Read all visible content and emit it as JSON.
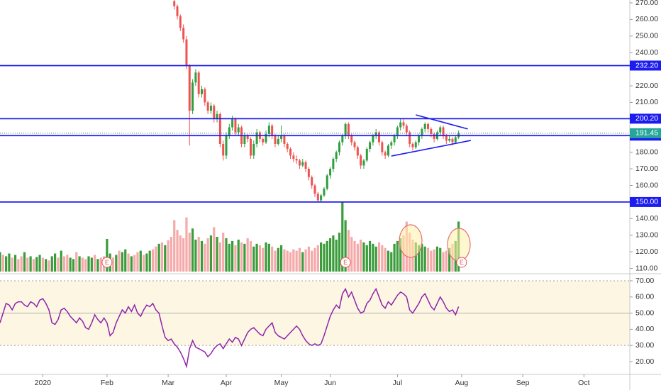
{
  "chart_data": {
    "type": "candlestick",
    "x": [
      -13,
      -12,
      -11,
      -10,
      -9,
      -8,
      -7,
      -6,
      -5,
      -4,
      -3,
      -2,
      -1,
      0,
      1,
      2,
      3,
      4,
      5,
      6,
      7,
      8,
      9,
      10,
      11,
      12,
      13,
      14,
      15,
      16,
      17,
      18,
      19,
      20,
      21,
      22,
      23,
      24,
      25,
      26,
      27,
      28,
      29,
      30,
      31,
      32,
      33,
      34,
      35,
      36,
      37,
      38,
      39,
      40,
      41,
      42,
      43,
      44,
      45,
      46,
      47,
      48,
      49,
      50,
      51,
      52,
      53,
      54,
      55,
      56,
      57,
      58,
      59,
      60,
      61,
      62,
      63,
      64,
      65,
      66,
      67,
      68,
      69,
      70,
      71,
      72,
      73,
      74,
      75,
      76,
      77,
      78,
      79,
      80,
      81,
      82,
      83,
      84,
      85,
      86,
      87,
      88,
      89,
      90,
      91,
      92,
      93,
      94,
      95,
      96,
      97,
      98,
      99,
      100,
      101,
      102,
      103,
      104,
      105,
      106,
      107,
      108,
      109,
      110,
      111,
      112,
      113,
      114,
      115,
      116,
      117,
      118,
      119,
      120,
      121,
      122,
      123,
      124,
      125,
      126,
      127,
      128,
      129,
      130,
      131,
      132,
      133,
      134,
      135,
      136,
      137
    ],
    "ohlc": [
      null,
      null,
      null,
      null,
      null,
      null,
      null,
      null,
      null,
      null,
      null,
      null,
      null,
      null,
      null,
      null,
      null,
      null,
      null,
      null,
      null,
      null,
      null,
      null,
      null,
      null,
      null,
      null,
      null,
      null,
      null,
      null,
      null,
      null,
      null,
      null,
      null,
      null,
      null,
      null,
      null,
      null,
      null,
      null,
      null,
      null,
      null,
      null,
      null,
      null,
      null,
      null,
      null,
      null,
      null,
      null,
      null,
      [
        271,
        272,
        266,
        268
      ],
      [
        268,
        269,
        260,
        262
      ],
      [
        262,
        263,
        253,
        255
      ],
      [
        255,
        257,
        246,
        248
      ],
      [
        248,
        250,
        230,
        232
      ],
      [
        232,
        233,
        184,
        205
      ],
      [
        205,
        224,
        203,
        222
      ],
      [
        222,
        230,
        220,
        228
      ],
      [
        228,
        229,
        213,
        215
      ],
      [
        215,
        220,
        213,
        218
      ],
      [
        218,
        219,
        208,
        210
      ],
      [
        210,
        211,
        203,
        205
      ],
      [
        205,
        210,
        203,
        208
      ],
      [
        208,
        209,
        198,
        200
      ],
      [
        200,
        205,
        198,
        203
      ],
      [
        203,
        204,
        183,
        185
      ],
      [
        185,
        187,
        175,
        178
      ],
      [
        178,
        192,
        176,
        190
      ],
      [
        190,
        197,
        188,
        195
      ],
      [
        195,
        202,
        193,
        200
      ],
      [
        200,
        201,
        190,
        192
      ],
      [
        192,
        197,
        190,
        195
      ],
      [
        195,
        196,
        183,
        185
      ],
      [
        185,
        192,
        183,
        190
      ],
      [
        190,
        191,
        186,
        188
      ],
      [
        188,
        189,
        176,
        178
      ],
      [
        178,
        187,
        176,
        185
      ],
      [
        185,
        194,
        183,
        192
      ],
      [
        192,
        193,
        186,
        188
      ],
      [
        188,
        189,
        184,
        186
      ],
      [
        186,
        193,
        185,
        191
      ],
      [
        191,
        198,
        189,
        196
      ],
      [
        196,
        197,
        188,
        190
      ],
      [
        190,
        191,
        183,
        185
      ],
      [
        185,
        190,
        184,
        188
      ],
      [
        188,
        196,
        186,
        190
      ],
      [
        190,
        191,
        183,
        185
      ],
      [
        185,
        186,
        180,
        182
      ],
      [
        182,
        183,
        176,
        178
      ],
      [
        178,
        180,
        174,
        176
      ],
      [
        176,
        178,
        173,
        175
      ],
      [
        175,
        176,
        170,
        172
      ],
      [
        172,
        176,
        171,
        174
      ],
      [
        174,
        175,
        168,
        170
      ],
      [
        170,
        171,
        163,
        165
      ],
      [
        165,
        166,
        158,
        160
      ],
      [
        160,
        161,
        153,
        155
      ],
      [
        155,
        156,
        150,
        151
      ],
      [
        151,
        155,
        150,
        154
      ],
      [
        154,
        159,
        153,
        158
      ],
      [
        158,
        167,
        157,
        166
      ],
      [
        166,
        171,
        164,
        170
      ],
      [
        170,
        177,
        168,
        176
      ],
      [
        176,
        181,
        174,
        180
      ],
      [
        180,
        187,
        178,
        186
      ],
      [
        186,
        191,
        184,
        190
      ],
      [
        190,
        198,
        188,
        197
      ],
      [
        197,
        198,
        188,
        190
      ],
      [
        190,
        191,
        184,
        186
      ],
      [
        186,
        187,
        181,
        183
      ],
      [
        183,
        184,
        176,
        178
      ],
      [
        178,
        179,
        170,
        172
      ],
      [
        172,
        176,
        170,
        175
      ],
      [
        175,
        183,
        174,
        182
      ],
      [
        182,
        187,
        180,
        186
      ],
      [
        186,
        191,
        184,
        190
      ],
      [
        190,
        194,
        188,
        192
      ],
      [
        192,
        193,
        184,
        186
      ],
      [
        186,
        187,
        178,
        180
      ],
      [
        180,
        181,
        176,
        178
      ],
      [
        178,
        185,
        177,
        184
      ],
      [
        184,
        187,
        182,
        186
      ],
      [
        186,
        191,
        184,
        190
      ],
      [
        190,
        196,
        188,
        195
      ],
      [
        195,
        200,
        193,
        198
      ],
      [
        198,
        200,
        194,
        196
      ],
      [
        196,
        197,
        190,
        192
      ],
      [
        192,
        193,
        183,
        185
      ],
      [
        185,
        186,
        181,
        183
      ],
      [
        183,
        187,
        182,
        186
      ],
      [
        186,
        191,
        184,
        190
      ],
      [
        190,
        195,
        188,
        194
      ],
      [
        194,
        198,
        192,
        197
      ],
      [
        197,
        198,
        192,
        194
      ],
      [
        194,
        195,
        189,
        191
      ],
      [
        191,
        192,
        186,
        188
      ],
      [
        188,
        193,
        187,
        192
      ],
      [
        192,
        196,
        190,
        195
      ],
      [
        195,
        196,
        188,
        190
      ],
      [
        190,
        191,
        185,
        187
      ],
      [
        187,
        190,
        186,
        188
      ],
      [
        188,
        189,
        184,
        186
      ],
      [
        186,
        190,
        185,
        189
      ],
      [
        189,
        193,
        188,
        191.45
      ]
    ],
    "volume": [
      28,
      24,
      22,
      26,
      20,
      24,
      18,
      22,
      28,
      20,
      22,
      18,
      21,
      24,
      20,
      18,
      16,
      22,
      26,
      20,
      30,
      22,
      24,
      20,
      18,
      28,
      22,
      20,
      18,
      22,
      20,
      24,
      18,
      20,
      22,
      47,
      26,
      20,
      24,
      30,
      28,
      32,
      26,
      22,
      24,
      28,
      30,
      24,
      26,
      30,
      32,
      36,
      40,
      42,
      38,
      45,
      50,
      74,
      60,
      52,
      48,
      78,
      56,
      62,
      46,
      50,
      44,
      40,
      48,
      52,
      64,
      50,
      42,
      56,
      48,
      40,
      44,
      38,
      46,
      42,
      40,
      48,
      44,
      36,
      40,
      38,
      34,
      42,
      40,
      36,
      30,
      34,
      38,
      32,
      30,
      28,
      32,
      30,
      34,
      28,
      32,
      36,
      30,
      34,
      38,
      42,
      40,
      44,
      48,
      52,
      46,
      56,
      100,
      74,
      60,
      50,
      44,
      40,
      46,
      42,
      38,
      44,
      40,
      36,
      42,
      38,
      34,
      30,
      28,
      40,
      44,
      48,
      52,
      72,
      56,
      46,
      42,
      38,
      40,
      36,
      34,
      30,
      32,
      36,
      34,
      28,
      30,
      34,
      40,
      44,
      72
    ],
    "volume_up": [
      1,
      0,
      1,
      1,
      0,
      1,
      0,
      0,
      1,
      0,
      1,
      0,
      1,
      1,
      0,
      1,
      0,
      1,
      1,
      0,
      1,
      0,
      0,
      1,
      1,
      0,
      1,
      0,
      0,
      1,
      1,
      0,
      1,
      0,
      0,
      1,
      1,
      0,
      1,
      0,
      1,
      1,
      0,
      1,
      0,
      0,
      1,
      0,
      1,
      1,
      0,
      0,
      1,
      0,
      1,
      0,
      0,
      0,
      0,
      0,
      0,
      0,
      0,
      1,
      1,
      0,
      1,
      0,
      0,
      1,
      0,
      1,
      0,
      0,
      1,
      1,
      1,
      0,
      1,
      0,
      1,
      0,
      0,
      1,
      1,
      0,
      0,
      1,
      1,
      0,
      0,
      1,
      1,
      0,
      0,
      0,
      0,
      0,
      0,
      1,
      0,
      0,
      0,
      0,
      0,
      1,
      1,
      1,
      1,
      1,
      1,
      1,
      1,
      1,
      0,
      0,
      0,
      0,
      0,
      1,
      1,
      1,
      1,
      1,
      0,
      0,
      0,
      1,
      1,
      1,
      1,
      1,
      0,
      0,
      0,
      0,
      1,
      1,
      1,
      1,
      0,
      0,
      0,
      1,
      1,
      0,
      0,
      1,
      0,
      1,
      1
    ],
    "volume_lim": [
      0,
      100
    ],
    "rsi": [
      44,
      50,
      56,
      55,
      52,
      56,
      57,
      57,
      55,
      54,
      57,
      56,
      54,
      58,
      59,
      56,
      52,
      44,
      43,
      46,
      52,
      53,
      51,
      48,
      46,
      44,
      47,
      45,
      41,
      40,
      44,
      49,
      46,
      44,
      47,
      44,
      36,
      38,
      44,
      48,
      52,
      50,
      54,
      51,
      55,
      50,
      48,
      52,
      55,
      54,
      56,
      52,
      50,
      42,
      35,
      33,
      34,
      31,
      29,
      26,
      22,
      17,
      28,
      33,
      29,
      28,
      27,
      26,
      23,
      25,
      28,
      30,
      31,
      28,
      31,
      34,
      32,
      35,
      34,
      30,
      34,
      38,
      40,
      41,
      39,
      37,
      36,
      40,
      42,
      44,
      38,
      36,
      35,
      34,
      36,
      38,
      40,
      42,
      40,
      36,
      33,
      31,
      30,
      31,
      30,
      31,
      36,
      42,
      48,
      52,
      55,
      53,
      62,
      65,
      60,
      63,
      58,
      53,
      50,
      51,
      56,
      58,
      62,
      65,
      60,
      55,
      53,
      57,
      55,
      58,
      61,
      63,
      62,
      60,
      52,
      50,
      53,
      56,
      60,
      62,
      58,
      54,
      52,
      56,
      60,
      57,
      53,
      51,
      52,
      49,
      54
    ],
    "xlim": [
      -13,
      193
    ],
    "xticks": [
      {
        "value": 1,
        "label": "2020"
      },
      {
        "value": 22,
        "label": "Feb"
      },
      {
        "value": 42,
        "label": "Mar"
      },
      {
        "value": 61,
        "label": "Apr"
      },
      {
        "value": 79,
        "label": "May"
      },
      {
        "value": 95,
        "label": "Jun"
      },
      {
        "value": 117,
        "label": "Jul"
      },
      {
        "value": 138,
        "label": "Aug"
      },
      {
        "value": 158,
        "label": "Sep"
      },
      {
        "value": 178,
        "label": "Oct"
      }
    ],
    "ylim": [
      108.1,
      271.7
    ],
    "yticks": [
      {
        "value": 270,
        "label": "270.00"
      },
      {
        "value": 260,
        "label": "260.00"
      },
      {
        "value": 250,
        "label": "250.00"
      },
      {
        "value": 240,
        "label": "240.00"
      },
      {
        "value": 220,
        "label": "220.00"
      },
      {
        "value": 210,
        "label": "210.00"
      },
      {
        "value": 180,
        "label": "180.00"
      },
      {
        "value": 170,
        "label": "170.00"
      },
      {
        "value": 160,
        "label": "160.00"
      },
      {
        "value": 140,
        "label": "140.00"
      },
      {
        "value": 130,
        "label": "130.00"
      },
      {
        "value": 120,
        "label": "120.00"
      },
      {
        "value": 110,
        "label": "110.00"
      }
    ],
    "levels": [
      {
        "value": 232.2,
        "label": "232.20"
      },
      {
        "value": 200.2,
        "label": "200.20"
      },
      {
        "value": 190,
        "label": "190.00"
      },
      {
        "value": 150,
        "label": "150.00"
      }
    ],
    "level_color": "#1c1cf0",
    "last_price": {
      "value": 191.45,
      "label": "191.45"
    },
    "last_price_color": "#26a69a",
    "trendlines": [
      {
        "x": [
          123,
          140
        ],
        "y": [
          202.5,
          194
        ]
      },
      {
        "x": [
          115,
          141
        ],
        "y": [
          177.7,
          187.1
        ]
      }
    ],
    "earnings": {
      "label": "E",
      "x": [
        22,
        100,
        138
      ]
    },
    "rsi_ylim": [
      12.1,
      73.5
    ],
    "rsi_yticks": [
      {
        "value": 70,
        "label": "70.00"
      },
      {
        "value": 60,
        "label": "60.00"
      },
      {
        "value": 50,
        "label": "50.00"
      },
      {
        "value": 40,
        "label": "40.00"
      },
      {
        "value": 30,
        "label": "30.00"
      },
      {
        "value": 20,
        "label": "20.00"
      }
    ],
    "rsi_band": [
      30,
      70
    ],
    "rsi_mid": 50,
    "rsi_color": "#8e24aa",
    "up_color": "#2e9e3e",
    "down_color": "#ef5350",
    "volume_up_color": "#3a9c3a",
    "volume_down_color": "#f5a9a9"
  }
}
